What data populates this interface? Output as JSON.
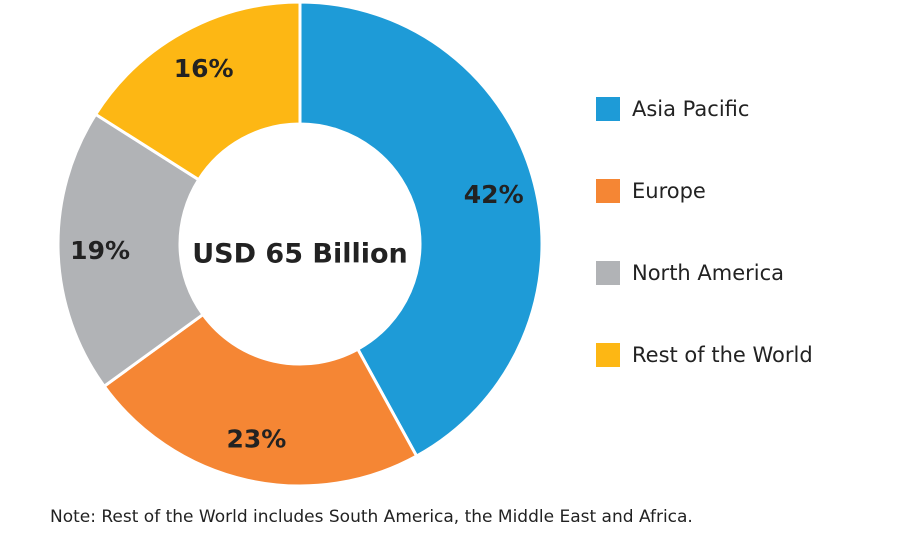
{
  "chart_data": {
    "type": "pie",
    "donut": true,
    "center_label": "USD 65 Billion",
    "slices": [
      {
        "name": "Asia Pacific",
        "value": 42,
        "label": "42%",
        "color": "#1e9bd7"
      },
      {
        "name": "Europe",
        "value": 23,
        "label": "23%",
        "color": "#f58634"
      },
      {
        "name": "North America",
        "value": 19,
        "label": "19%",
        "color": "#b1b3b6"
      },
      {
        "name": "Rest of the World",
        "value": 16,
        "label": "16%",
        "color": "#fdb714"
      }
    ],
    "legend_position": "right",
    "note": "Note: Rest of the World includes South America, the Middle East and Africa."
  }
}
